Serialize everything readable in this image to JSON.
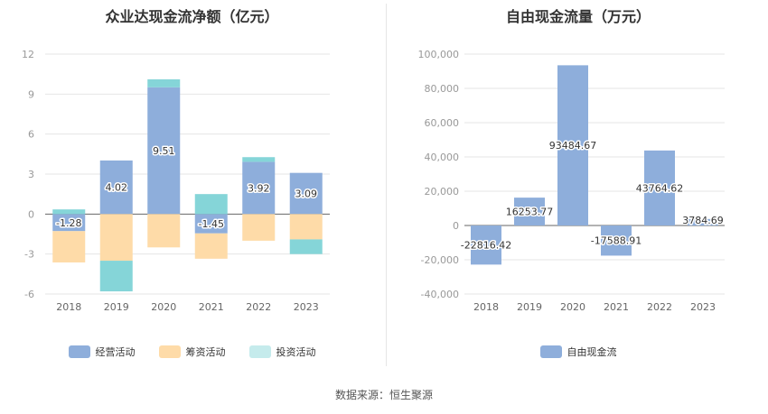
{
  "source": "数据来源：恒生聚源",
  "chart_data": [
    {
      "type": "bar",
      "stacked": true,
      "title": "众业达现金流净额（亿元）",
      "categories": [
        "2018",
        "2019",
        "2020",
        "2021",
        "2022",
        "2023"
      ],
      "ylim": [
        -6,
        12
      ],
      "yticks": [
        -6,
        -3,
        0,
        3,
        6,
        9,
        12
      ],
      "grid": true,
      "legend_position": "bottom",
      "series": [
        {
          "name": "经营活动",
          "color": "#8eaedb",
          "values": [
            -1.28,
            4.02,
            9.51,
            -1.45,
            3.92,
            3.09
          ],
          "labels": [
            "-1.28",
            "4.02",
            "9.51",
            "-1.45",
            "3.92",
            "3.09"
          ]
        },
        {
          "name": "筹资活动",
          "color": "#fedba8",
          "values": [
            -2.35,
            -3.5,
            -2.5,
            -1.9,
            -2.0,
            -1.9
          ]
        },
        {
          "name": "投资活动",
          "color": "#85d5d8",
          "values": [
            0.35,
            -2.3,
            0.6,
            1.5,
            0.35,
            -1.1
          ]
        }
      ]
    },
    {
      "type": "bar",
      "title": "自由现金流量（万元）",
      "categories": [
        "2018",
        "2019",
        "2020",
        "2021",
        "2022",
        "2023"
      ],
      "ylim": [
        -40000,
        100000
      ],
      "yticks": [
        -40000,
        -20000,
        0,
        20000,
        40000,
        60000,
        80000,
        100000
      ],
      "ytick_labels": [
        "-40,000",
        "-20,000",
        "0",
        "20,000",
        "40,000",
        "60,000",
        "80,000",
        "100,000"
      ],
      "grid": true,
      "legend_position": "bottom",
      "series": [
        {
          "name": "自由现金流",
          "color": "#8eaedb",
          "values": [
            -22816.42,
            16253.77,
            93484.67,
            -17588.91,
            43764.62,
            3784.69
          ],
          "labels": [
            "-22816.42",
            "16253.77",
            "93484.67",
            "-17588.91",
            "43764.62",
            "3784.69"
          ]
        }
      ]
    }
  ]
}
